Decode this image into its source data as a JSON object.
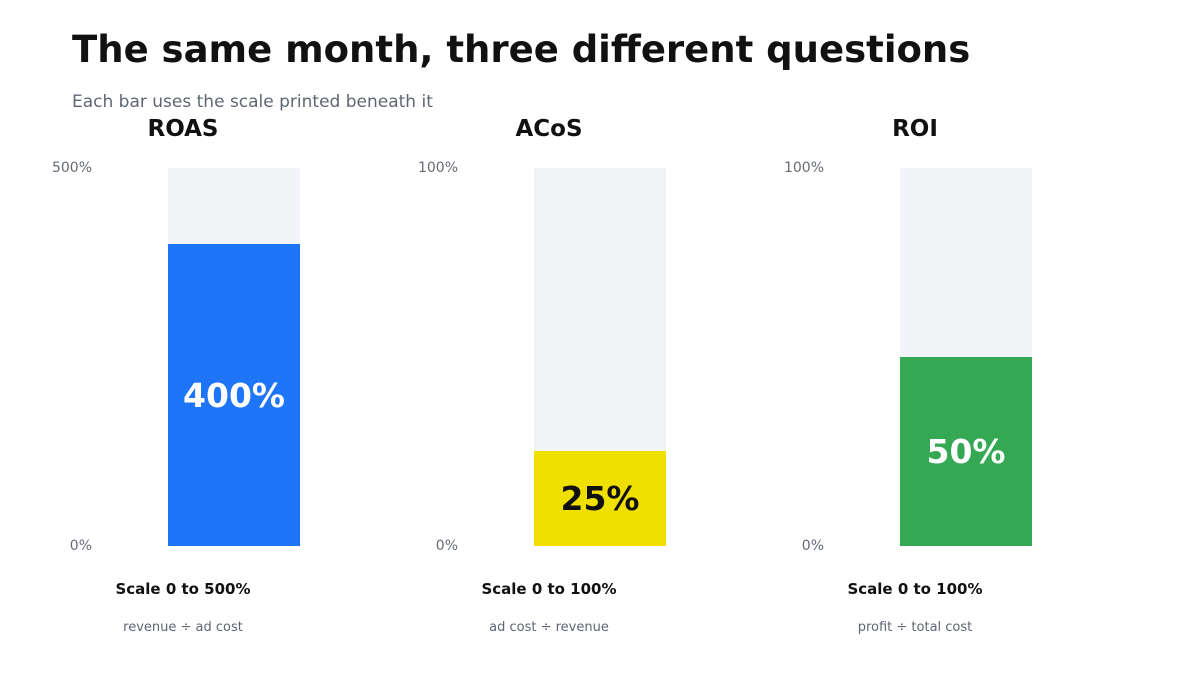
{
  "title": "The same month, three different questions",
  "subtitle": "Each bar uses the scale printed beneath it",
  "chart_data": [
    {
      "type": "bar",
      "title": "ROAS",
      "categories": [
        "ROAS"
      ],
      "values": [
        400
      ],
      "value_label": "400%",
      "ylim": [
        0,
        500
      ],
      "ticks": [
        "0%",
        "500%"
      ],
      "scale_label": "Scale 0 to 500%",
      "formula": "revenue ÷ ad cost",
      "color": "#1f75f7",
      "label_color": "#ffffff",
      "grid": false
    },
    {
      "type": "bar",
      "title": "ACoS",
      "categories": [
        "ACoS"
      ],
      "values": [
        25
      ],
      "value_label": "25%",
      "ylim": [
        0,
        100
      ],
      "ticks": [
        "0%",
        "100%"
      ],
      "scale_label": "Scale 0 to 100%",
      "formula": "ad cost ÷ revenue",
      "color": "#f0e000",
      "label_color": "#111111",
      "grid": false
    },
    {
      "type": "bar",
      "title": "ROI",
      "categories": [
        "ROI"
      ],
      "values": [
        50
      ],
      "value_label": "50%",
      "ylim": [
        0,
        100
      ],
      "ticks": [
        "0%",
        "100%"
      ],
      "scale_label": "Scale 0 to 100%",
      "formula": "profit ÷ total cost",
      "color": "#34a853",
      "label_color": "#ffffff",
      "grid": false
    }
  ]
}
